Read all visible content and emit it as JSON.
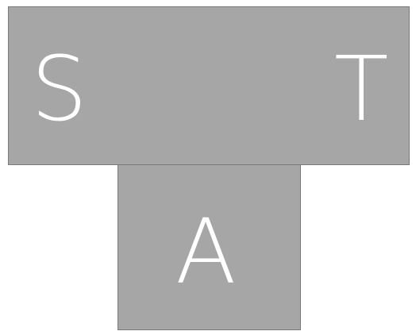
{
  "colors": {
    "block_fill": "#a6a6a6",
    "block_border": "#7a7a7a",
    "letter": "#ffffff",
    "background": "#ffffff"
  },
  "top_block": {
    "left_label": "S",
    "right_label": "T"
  },
  "bottom_block": {
    "label": "A"
  }
}
